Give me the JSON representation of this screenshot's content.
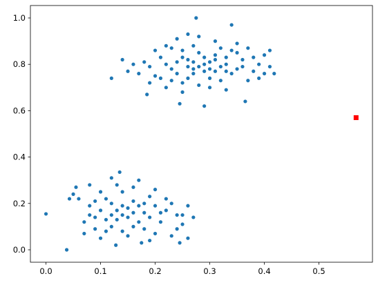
{
  "chart_data": {
    "type": "scatter",
    "xlim": [
      -0.0285,
      0.598
    ],
    "ylim": [
      -0.0536,
      1.0536
    ],
    "xticks": [
      {
        "value": 0.0,
        "label": "0.0"
      },
      {
        "value": 0.1,
        "label": "0.1"
      },
      {
        "value": 0.2,
        "label": "0.2"
      },
      {
        "value": 0.3,
        "label": "0.3"
      },
      {
        "value": 0.4,
        "label": "0.4"
      },
      {
        "value": 0.5,
        "label": "0.5"
      }
    ],
    "yticks": [
      {
        "value": 0.0,
        "label": "0.0"
      },
      {
        "value": 0.2,
        "label": "0.2"
      },
      {
        "value": 0.4,
        "label": "0.4"
      },
      {
        "value": 0.6,
        "label": "0.6"
      },
      {
        "value": 0.8,
        "label": "0.8"
      },
      {
        "value": 1.0,
        "label": "1.0"
      }
    ],
    "grid": false,
    "series": [
      {
        "color": "#1f77b4",
        "marker": "o",
        "x": [
          0.22,
          0.25,
          0.27,
          0.3,
          0.32,
          0.28,
          0.24,
          0.26,
          0.29,
          0.31,
          0.33,
          0.35,
          0.21,
          0.19,
          0.23,
          0.27,
          0.3,
          0.34,
          0.36,
          0.38,
          0.2,
          0.18,
          0.25,
          0.28,
          0.32,
          0.37,
          0.39,
          0.4,
          0.24,
          0.26,
          0.31,
          0.22,
          0.17,
          0.16,
          0.15,
          0.29,
          0.27,
          0.26,
          0.28,
          0.3,
          0.33,
          0.35,
          0.23,
          0.21,
          0.25,
          0.32,
          0.34,
          0.36,
          0.41,
          0.39,
          0.19,
          0.22,
          0.26,
          0.3,
          0.33,
          0.27,
          0.29,
          0.31,
          0.24,
          0.2,
          0.14,
          0.37,
          0.35,
          0.28,
          0.25,
          0.23,
          0.31,
          0.33,
          0.38,
          0.4,
          0.275,
          0.34,
          0.12,
          0.29,
          0.365,
          0.41,
          0.418,
          0.185,
          0.245,
          0.15,
          0.12,
          0.18,
          0.14,
          0.16,
          0.1,
          0.2,
          0.13,
          0.17,
          0.11,
          0.19,
          0.09,
          0.22,
          0.08,
          0.24,
          0.14,
          0.16,
          0.12,
          0.18,
          0.21,
          0.23,
          0.07,
          0.1,
          0.13,
          0.17,
          0.2,
          0.15,
          0.11,
          0.25,
          0.26,
          0.06,
          0.05,
          0.09,
          0.19,
          0.14,
          0.16,
          0.15,
          0.13,
          0.17,
          0.12,
          0.18,
          0.21,
          0.11,
          0.09,
          0.08,
          0.22,
          0.24,
          0.23,
          0.19,
          0.1,
          0.14,
          0.16,
          0.2,
          0.12,
          0.08,
          0.07,
          0.26,
          0.25,
          0.27,
          0.0,
          0.038,
          0.135,
          0.128,
          0.043,
          0.055,
          0.175,
          0.245
        ],
        "y": [
          0.8,
          0.83,
          0.78,
          0.81,
          0.79,
          0.85,
          0.76,
          0.82,
          0.77,
          0.84,
          0.8,
          0.78,
          0.83,
          0.79,
          0.87,
          0.88,
          0.74,
          0.86,
          0.82,
          0.77,
          0.75,
          0.81,
          0.72,
          0.71,
          0.73,
          0.73,
          0.8,
          0.84,
          0.91,
          0.93,
          0.9,
          0.88,
          0.76,
          0.8,
          0.77,
          0.8,
          0.81,
          0.79,
          0.79,
          0.78,
          0.83,
          0.85,
          0.78,
          0.74,
          0.86,
          0.87,
          0.76,
          0.79,
          0.79,
          0.74,
          0.72,
          0.7,
          0.74,
          0.7,
          0.69,
          0.76,
          0.83,
          0.82,
          0.81,
          0.86,
          0.82,
          0.87,
          0.89,
          0.92,
          0.68,
          0.73,
          0.77,
          0.77,
          0.83,
          0.76,
          1.0,
          0.97,
          0.74,
          0.62,
          0.64,
          0.86,
          0.76,
          0.67,
          0.63,
          0.18,
          0.2,
          0.16,
          0.15,
          0.21,
          0.17,
          0.19,
          0.13,
          0.12,
          0.22,
          0.23,
          0.14,
          0.17,
          0.19,
          0.15,
          0.25,
          0.27,
          0.1,
          0.09,
          0.12,
          0.2,
          0.12,
          0.25,
          0.28,
          0.3,
          0.07,
          0.06,
          0.08,
          0.11,
          0.19,
          0.22,
          0.24,
          0.09,
          0.14,
          0.19,
          0.16,
          0.14,
          0.17,
          0.19,
          0.15,
          0.2,
          0.16,
          0.13,
          0.21,
          0.15,
          0.22,
          0.09,
          0.06,
          0.04,
          0.05,
          0.08,
          0.1,
          0.26,
          0.31,
          0.28,
          0.07,
          0.05,
          0.15,
          0.14,
          0.155,
          0.0,
          0.335,
          0.02,
          0.22,
          0.27,
          0.03,
          0.03
        ]
      },
      {
        "color": "#ff0000",
        "marker": "s",
        "x": [
          0.568
        ],
        "y": [
          0.57
        ]
      }
    ]
  }
}
